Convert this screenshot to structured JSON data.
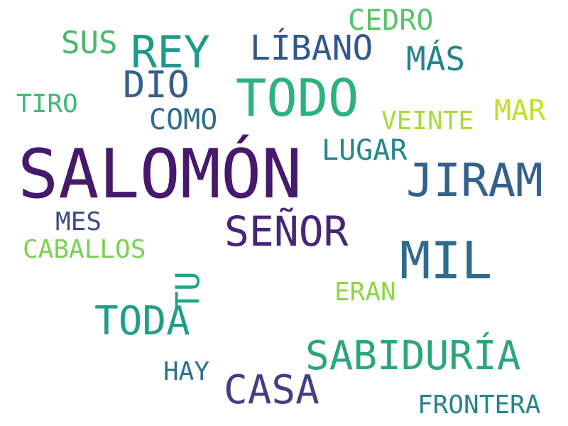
{
  "words": [
    {
      "text": "SALOMÓN",
      "color": "#46186e"
    },
    {
      "text": "TODO",
      "color": "#2db27d"
    },
    {
      "text": "MIL",
      "color": "#2f6b8e"
    },
    {
      "text": "JIRAM",
      "color": "#33608d"
    },
    {
      "text": "REY",
      "color": "#1f9a8a"
    },
    {
      "text": "SEÑOR",
      "color": "#482475"
    },
    {
      "text": "CASA",
      "color": "#423f85"
    },
    {
      "text": "SABIDURÍA",
      "color": "#2aa67f"
    },
    {
      "text": "TODA",
      "color": "#1f9e89"
    },
    {
      "text": "DIO",
      "color": "#355f8d"
    },
    {
      "text": "LÍBANO",
      "color": "#31588d"
    },
    {
      "text": "MÁS",
      "color": "#24838e"
    },
    {
      "text": "SUS",
      "color": "#4ab86b"
    },
    {
      "text": "CEDRO",
      "color": "#56c667"
    },
    {
      "text": "LUGAR",
      "color": "#21878d"
    },
    {
      "text": "MAR",
      "color": "#c2df23"
    },
    {
      "text": "COMO",
      "color": "#2f6c8e"
    },
    {
      "text": "VEINTE",
      "color": "#a8db34"
    },
    {
      "text": "TIRO",
      "color": "#3bbb75"
    },
    {
      "text": "TU",
      "color": "#20a386"
    },
    {
      "text": "MES",
      "color": "#3e4c8a"
    },
    {
      "text": "CABALLOS",
      "color": "#7ad151"
    },
    {
      "text": "ERAN",
      "color": "#8ed645"
    },
    {
      "text": "HAY",
      "color": "#2c728e"
    },
    {
      "text": "FRONTERA",
      "color": "#25848e"
    }
  ]
}
